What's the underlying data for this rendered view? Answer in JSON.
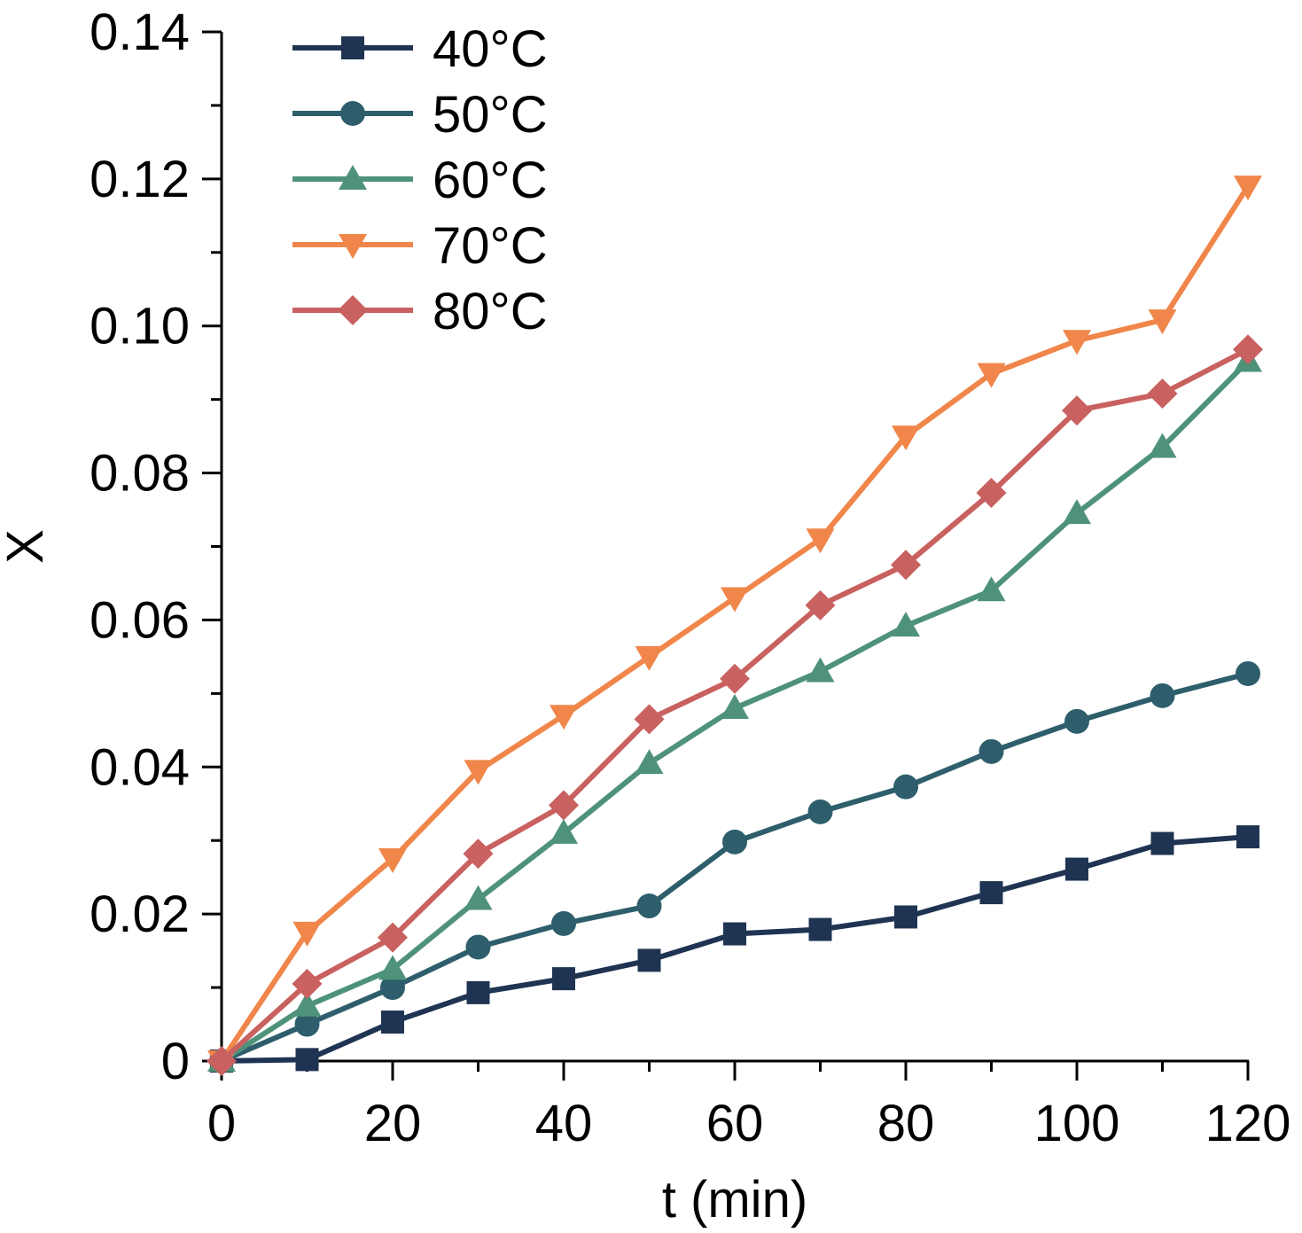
{
  "chart_data": {
    "type": "line",
    "title": "",
    "xlabel": "t (min)",
    "ylabel": "X",
    "xlim": [
      0,
      120
    ],
    "ylim": [
      0,
      0.14
    ],
    "xticks": [
      0,
      20,
      40,
      60,
      80,
      100,
      120
    ],
    "xtick_labels": [
      "0",
      "20",
      "40",
      "60",
      "80",
      "100",
      "120"
    ],
    "yticks": [
      0,
      0.02,
      0.04,
      0.06,
      0.08,
      0.1,
      0.12,
      0.14
    ],
    "ytick_labels": [
      "0",
      "0.02",
      "0.04",
      "0.06",
      "0.08",
      "0.10",
      "0.12",
      "0.14"
    ],
    "grid": false,
    "legend_position": "top-left",
    "x": [
      0,
      10,
      20,
      30,
      40,
      50,
      60,
      70,
      80,
      90,
      100,
      110,
      120
    ],
    "series": [
      {
        "name": "40°C",
        "color": "#1f3452",
        "marker": "square",
        "values": [
          0,
          0.0002,
          0.0053,
          0.0093,
          0.0112,
          0.0137,
          0.0173,
          0.0179,
          0.0196,
          0.0229,
          0.0261,
          0.0296,
          0.0305
        ]
      },
      {
        "name": "50°C",
        "color": "#2e5e6b",
        "marker": "circle",
        "values": [
          0,
          0.005,
          0.01,
          0.0155,
          0.0187,
          0.0211,
          0.0298,
          0.0339,
          0.0373,
          0.0421,
          0.0462,
          0.0497,
          0.0527
        ]
      },
      {
        "name": "60°C",
        "color": "#4e9279",
        "marker": "triangle-up",
        "values": [
          0,
          0.0075,
          0.0125,
          0.022,
          0.031,
          0.0405,
          0.048,
          0.053,
          0.0592,
          0.064,
          0.0745,
          0.0835,
          0.0952
        ]
      },
      {
        "name": "70°C",
        "color": "#f0864a",
        "marker": "triangle-down",
        "values": [
          0,
          0.0175,
          0.0275,
          0.0395,
          0.047,
          0.055,
          0.063,
          0.071,
          0.085,
          0.0935,
          0.098,
          0.1008,
          0.119
        ]
      },
      {
        "name": "80°C",
        "color": "#c8615f",
        "marker": "diamond",
        "values": [
          0,
          0.0105,
          0.0168,
          0.0282,
          0.0348,
          0.0465,
          0.052,
          0.062,
          0.0675,
          0.0773,
          0.0885,
          0.0908,
          0.0968
        ]
      }
    ]
  }
}
